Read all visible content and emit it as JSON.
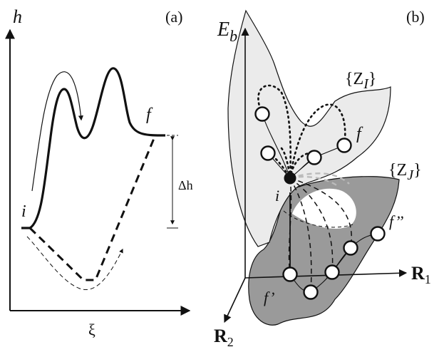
{
  "panel_a": {
    "panel_label": "(a)",
    "y_axis_label": "h",
    "x_axis_label": "ξ",
    "initial_label": "i",
    "final_label": "f",
    "delta_label": "Δh"
  },
  "panel_b": {
    "panel_label": "(b)",
    "energy_axis_label": "E",
    "energy_axis_sub": "b",
    "r1_label": "R",
    "r1_sub": "1",
    "r2_label": "R",
    "r2_sub": "2",
    "upper_set_label": "{Z",
    "upper_set_sub": "I",
    "upper_set_close": "}",
    "lower_set_label": "{Z",
    "lower_set_sub": "J",
    "lower_set_close": "}",
    "initial_label": "i",
    "final_label": "f",
    "f_prime_label": "f’",
    "f_double_prime_label": "f’’"
  },
  "colors": {
    "ink": "#111111",
    "upper_surface": "#ebebeb",
    "lower_surface": "#9a9a9a",
    "light_dashes": "#bbbbbb"
  }
}
